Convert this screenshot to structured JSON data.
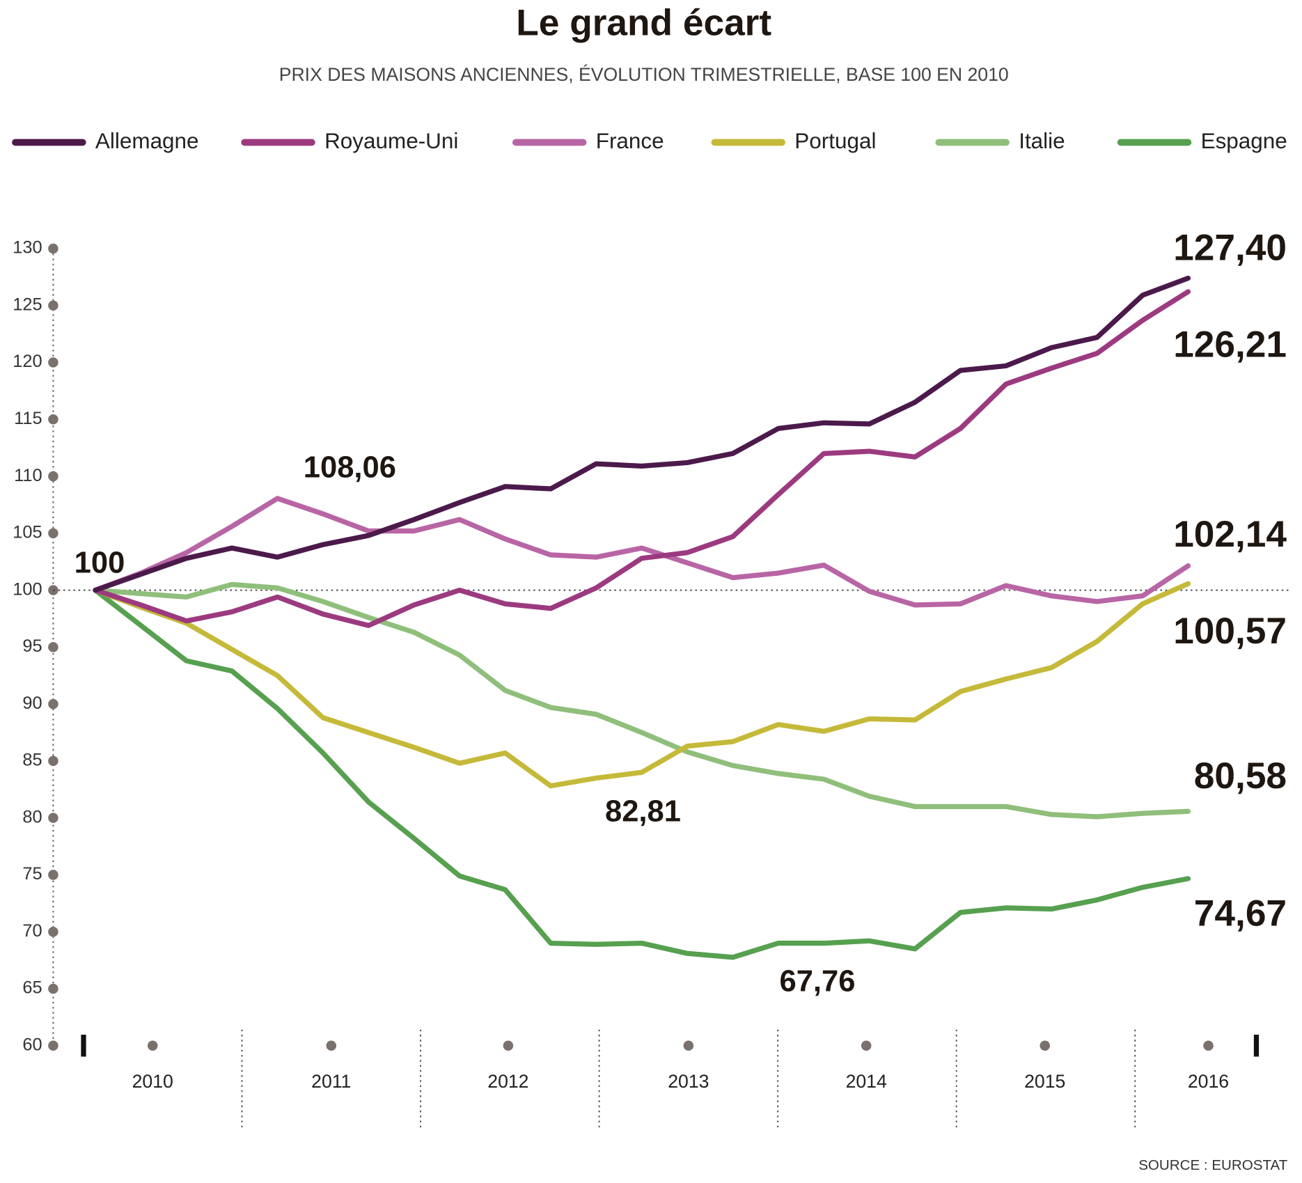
{
  "chart_data": {
    "type": "line",
    "title": "Le grand écart",
    "subtitle": "PRIX DES MAISONS ANCIENNES, ÉVOLUTION TRIMESTRIELLE, BASE 100 EN 2010",
    "source": "SOURCE : EUROSTAT",
    "categories": [
      null,
      null,
      null,
      null,
      null,
      null,
      null,
      null,
      null,
      null,
      null,
      null,
      null,
      null,
      null,
      null,
      null,
      null,
      null,
      null,
      null,
      null,
      null,
      null,
      null
    ],
    "x_axis_labels": [
      "2010",
      "2011",
      "2012",
      "2013",
      "2014",
      "2015",
      "2016"
    ],
    "ylim": [
      60,
      130
    ],
    "yticks": [
      60,
      65,
      70,
      75,
      80,
      85,
      90,
      95,
      100,
      105,
      110,
      115,
      120,
      125,
      130
    ],
    "baseline": 100,
    "series": [
      {
        "name": "Allemagne",
        "color": "#4b1a4b",
        "values": [
          100,
          101.4,
          102.8,
          103.7,
          102.9,
          104.0,
          104.8,
          106.2,
          107.7,
          109.1,
          108.9,
          111.1,
          110.9,
          111.2,
          112.0,
          114.2,
          114.7,
          114.6,
          116.5,
          119.3,
          119.7,
          121.3,
          122.2,
          125.9,
          127.4
        ],
        "value_labels": [
          "100",
          null,
          null,
          null,
          null,
          null,
          null,
          null,
          null,
          null,
          null,
          null,
          null,
          null,
          null,
          null,
          null,
          null,
          null,
          null,
          null,
          null,
          null,
          null,
          "127,40"
        ]
      },
      {
        "name": "Royaume-Uni",
        "color": "#9c3a80",
        "values": [
          100,
          98.7,
          97.3,
          98.1,
          99.4,
          97.9,
          96.9,
          98.7,
          100,
          98.8,
          98.4,
          100.2,
          102.8,
          103.3,
          104.7,
          108.4,
          112.0,
          112.2,
          111.7,
          114.2,
          118.1,
          119.5,
          120.8,
          123.7,
          126.21
        ],
        "value_labels": [
          null,
          null,
          null,
          null,
          null,
          null,
          null,
          null,
          null,
          null,
          null,
          null,
          null,
          null,
          null,
          null,
          null,
          null,
          null,
          null,
          null,
          null,
          null,
          null,
          "126,21"
        ]
      },
      {
        "name": "France",
        "color": "#b865a5",
        "values": [
          100,
          101.5,
          103.3,
          105.6,
          108.06,
          106.7,
          105.2,
          105.2,
          106.2,
          104.5,
          103.1,
          102.9,
          103.7,
          102.4,
          101.1,
          101.5,
          102.2,
          99.9,
          98.7,
          98.8,
          100.4,
          99.5,
          99.0,
          99.5,
          102.14
        ],
        "value_labels": [
          null,
          null,
          null,
          null,
          "108,06",
          null,
          null,
          null,
          null,
          null,
          null,
          null,
          null,
          null,
          null,
          null,
          null,
          null,
          null,
          null,
          null,
          null,
          null,
          null,
          "102,14"
        ]
      },
      {
        "name": "Portugal",
        "color": "#c5b93a",
        "values": [
          100,
          98.5,
          97.1,
          94.8,
          92.5,
          88.8,
          87.5,
          86.2,
          84.8,
          85.7,
          82.81,
          83.5,
          84.0,
          86.3,
          86.7,
          88.2,
          87.6,
          88.7,
          88.6,
          91.1,
          92.2,
          93.2,
          95.5,
          98.8,
          100.57
        ],
        "value_labels": [
          null,
          null,
          null,
          null,
          null,
          null,
          null,
          null,
          null,
          null,
          "82,81",
          null,
          null,
          null,
          null,
          null,
          null,
          null,
          null,
          null,
          null,
          null,
          null,
          null,
          "100,57"
        ]
      },
      {
        "name": "Italie",
        "color": "#8fbf7b",
        "values": [
          100,
          99.7,
          99.4,
          100.5,
          100.2,
          99.0,
          97.6,
          96.3,
          94.3,
          91.2,
          89.7,
          89.1,
          87.5,
          85.8,
          84.6,
          83.9,
          83.4,
          81.9,
          81.0,
          81.0,
          81.0,
          80.3,
          80.1,
          80.4,
          80.58
        ],
        "value_labels": [
          null,
          null,
          null,
          null,
          null,
          null,
          null,
          null,
          null,
          null,
          null,
          null,
          null,
          null,
          null,
          null,
          null,
          null,
          null,
          null,
          null,
          null,
          null,
          null,
          "80,58"
        ]
      },
      {
        "name": "Espagne",
        "color": "#56a04f",
        "values": [
          100,
          96.9,
          93.8,
          92.9,
          89.6,
          85.7,
          81.4,
          78.2,
          74.9,
          73.7,
          69.0,
          68.9,
          69.0,
          68.1,
          67.76,
          69.0,
          69.0,
          69.2,
          68.5,
          71.7,
          72.1,
          72.0,
          72.8,
          73.9,
          74.67
        ],
        "value_labels": [
          null,
          null,
          null,
          null,
          null,
          null,
          null,
          null,
          null,
          null,
          null,
          null,
          null,
          null,
          "67,76",
          null,
          null,
          null,
          null,
          null,
          null,
          null,
          null,
          null,
          "74,67"
        ]
      }
    ]
  }
}
